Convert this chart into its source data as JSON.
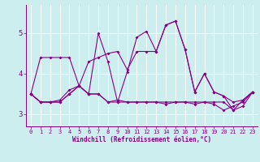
{
  "xlabel": "Windchill (Refroidissement éolien,°C)",
  "x": [
    0,
    1,
    2,
    3,
    4,
    5,
    6,
    7,
    8,
    9,
    10,
    11,
    12,
    13,
    14,
    15,
    16,
    17,
    18,
    19,
    20,
    21,
    22,
    23
  ],
  "line1": [
    3.5,
    4.4,
    4.4,
    4.4,
    4.4,
    3.7,
    4.3,
    4.4,
    4.5,
    4.55,
    4.1,
    4.55,
    4.55,
    4.55,
    5.2,
    5.3,
    4.6,
    3.55,
    4.0,
    3.55,
    3.45,
    3.3,
    3.35,
    3.55
  ],
  "line2": [
    3.5,
    3.3,
    3.3,
    3.35,
    3.6,
    3.7,
    3.5,
    3.5,
    3.3,
    3.3,
    3.3,
    3.3,
    3.3,
    3.3,
    3.25,
    3.3,
    3.3,
    3.3,
    3.3,
    3.25,
    3.1,
    3.2,
    3.3,
    3.55
  ],
  "line3": [
    3.5,
    3.3,
    3.3,
    3.3,
    3.5,
    3.7,
    3.5,
    5.0,
    4.3,
    3.3,
    4.05,
    4.9,
    5.05,
    4.55,
    5.2,
    5.3,
    4.6,
    3.55,
    4.0,
    3.55,
    3.45,
    3.1,
    3.35,
    3.55
  ],
  "line4": [
    3.5,
    3.3,
    3.3,
    3.3,
    3.5,
    3.7,
    3.5,
    3.5,
    3.3,
    3.35,
    3.3,
    3.3,
    3.3,
    3.3,
    3.3,
    3.3,
    3.3,
    3.25,
    3.3,
    3.3,
    3.3,
    3.1,
    3.2,
    3.55
  ],
  "color": "#880088",
  "bg_color": "#cceeee",
  "grid_color": "#ffffff",
  "ylim": [
    2.7,
    5.7
  ],
  "yticks": [
    3,
    4,
    5
  ],
  "marker": "D",
  "markersize": 2.0,
  "linewidth": 0.8,
  "tick_fontsize": 5.0,
  "xlabel_fontsize": 5.5
}
